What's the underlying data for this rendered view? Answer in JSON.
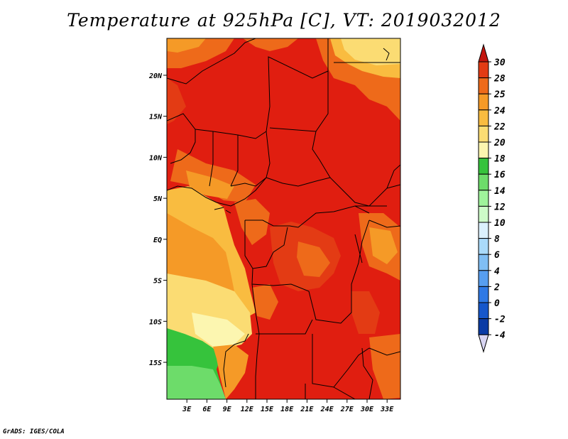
{
  "title": "Temperature at 925hPa [C], VT: 2019032012",
  "credit": "GrADS: IGES/COLA",
  "map": {
    "lon_range": [
      0,
      35
    ],
    "lat_range": [
      -19.5,
      24.5
    ],
    "x_ticks": [
      "3E",
      "6E",
      "9E",
      "12E",
      "15E",
      "18E",
      "21E",
      "24E",
      "27E",
      "30E",
      "33E"
    ],
    "y_ticks": [
      "20N",
      "15N",
      "10N",
      "5N",
      "EQ",
      "5S",
      "10S",
      "15S"
    ],
    "background_color": "#e01e10"
  },
  "colorbar": {
    "labels": [
      "30",
      "28",
      "25",
      "24",
      "22",
      "20",
      "18",
      "16",
      "14",
      "12",
      "10",
      "8",
      "6",
      "4",
      "2",
      "0",
      "-2",
      "-4"
    ],
    "colors": [
      "#d21a10",
      "#e33b14",
      "#ee6a1a",
      "#f59a27",
      "#f9bc40",
      "#fbdc73",
      "#fcf6b0",
      "#36c33c",
      "#6ddc6a",
      "#9ff39b",
      "#cdfbc8",
      "#dcf1fd",
      "#aadafa",
      "#80bef4",
      "#579ef0",
      "#2f79e5",
      "#1657cb",
      "#0a3ba5",
      "#0b1e78"
    ],
    "top_arrow_color": "#c3150e",
    "bottom_arrow_color": "#d8d5f2"
  }
}
